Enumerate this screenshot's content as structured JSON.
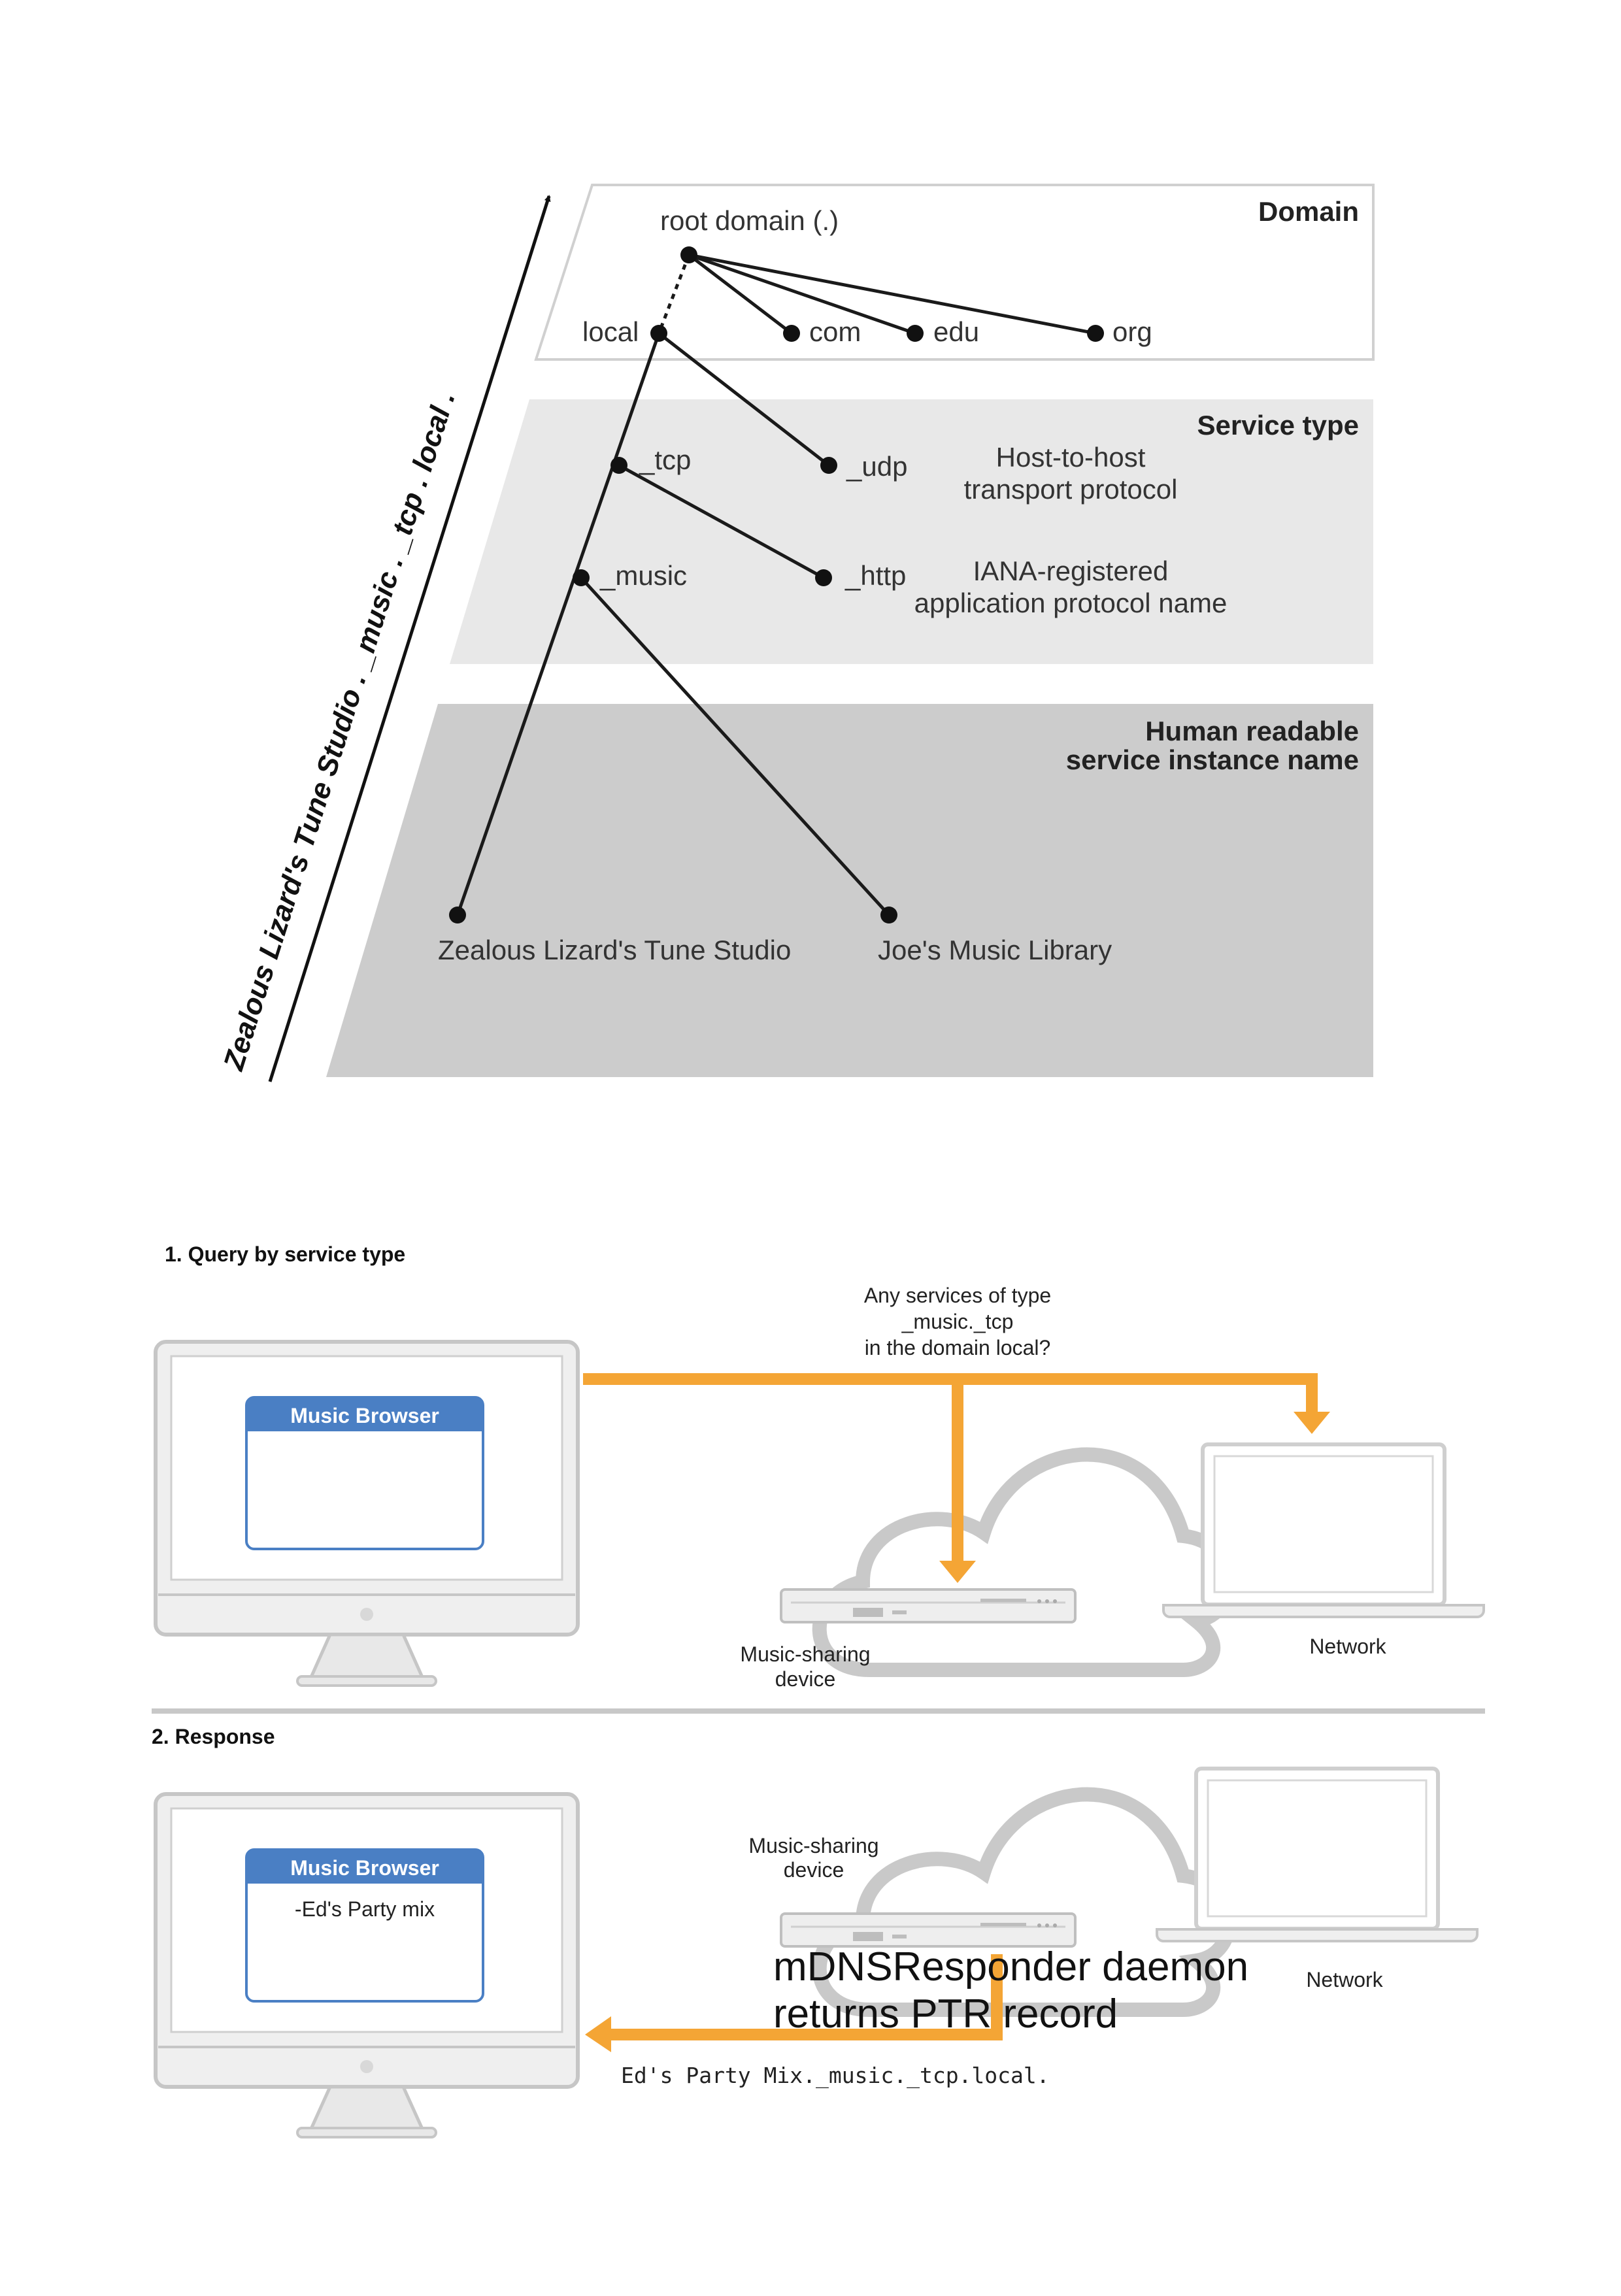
{
  "hierarchy": {
    "bands": {
      "domain": "Domain",
      "service_type": "Service type",
      "instance_line1": "Human readable",
      "instance_line2": "service instance name"
    },
    "nodes": {
      "root": "root domain (.)",
      "local": "local",
      "com": "com",
      "edu": "edu",
      "org": "org",
      "tcp": "_tcp",
      "udp": "_udp",
      "music": "_music",
      "http": "_http",
      "zealous": "Zealous Lizard's Tune Studio",
      "joes": "Joe's Music Library"
    },
    "descriptions": {
      "transport_line1": "Host-to-host",
      "transport_line2": "transport protocol",
      "iana_line1": "IANA-registered",
      "iana_line2": "application protocol name"
    },
    "axis_label": "Zealous Lizard's Tune Studio  .  _music  .  _tcp  .  local  ."
  },
  "query": {
    "step_label": "1. Query by service type",
    "question_line1": "Any services of type",
    "question_line2": "_music._tcp",
    "question_line3": "in the domain local?",
    "browser_title": "Music Browser",
    "device_line1": "Music-sharing",
    "device_line2": "device",
    "network_label": "Network"
  },
  "response": {
    "step_label": "2. Response",
    "browser_title": "Music Browser",
    "browser_item": "-Ed's Party mix",
    "device_line1": "Music-sharing",
    "device_line2": "device",
    "network_label": "Network",
    "daemon_line1": "mDNSResponder daemon",
    "daemon_line2": "returns PTR record",
    "record": "Ed's Party Mix._music._tcp.local."
  },
  "colors": {
    "arrow": "#f4a535",
    "browser_header": "#4a7fc4",
    "band_domain": "#ffffff",
    "band_service": "#e8e8e8",
    "band_instance": "#cccccc",
    "device_gray": "#c9c9c9"
  }
}
